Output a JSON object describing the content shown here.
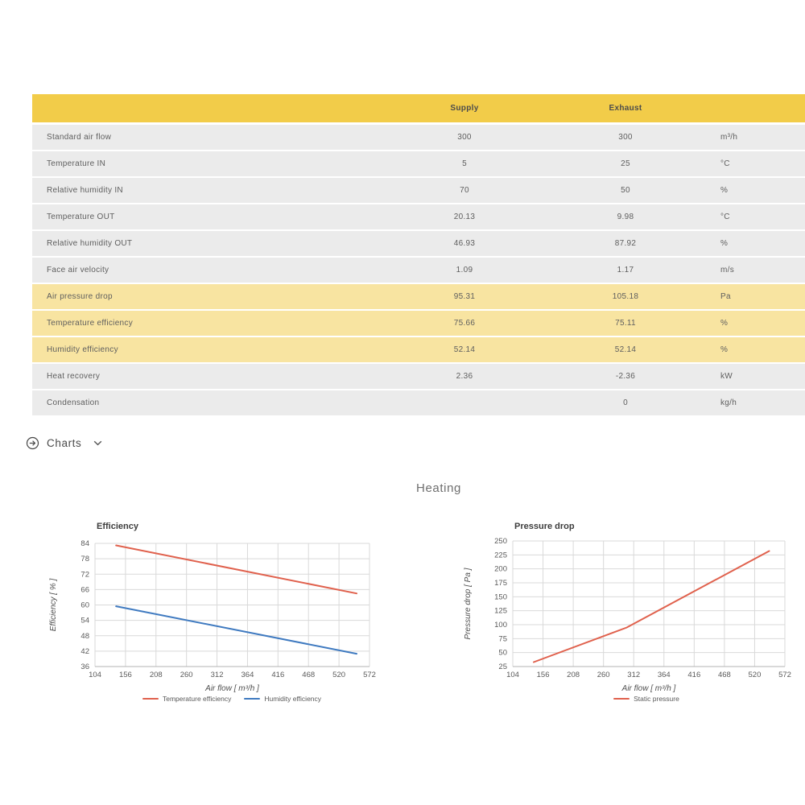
{
  "colors": {
    "header_gold": "#F2CC49",
    "row_gray": "#EBEBEB",
    "row_highlight": "#F8E4A1",
    "grid_line": "#D9D9D9",
    "axis_line": "#B3B3B3",
    "red_series": "#E0614D",
    "blue_series": "#3F7AC0",
    "text_gray": "#5E5E5E"
  },
  "table": {
    "columns": {
      "supply": "Supply",
      "exhaust": "Exhaust"
    },
    "rows": [
      {
        "name": "Standard air flow",
        "supply": "300",
        "exhaust": "300",
        "unit": "m³/h",
        "highlight": false
      },
      {
        "name": "Temperature IN",
        "supply": "5",
        "exhaust": "25",
        "unit": "°C",
        "highlight": false
      },
      {
        "name": "Relative humidity IN",
        "supply": "70",
        "exhaust": "50",
        "unit": "%",
        "highlight": false
      },
      {
        "name": "Temperature OUT",
        "supply": "20.13",
        "exhaust": "9.98",
        "unit": "°C",
        "highlight": false
      },
      {
        "name": "Relative humidity OUT",
        "supply": "46.93",
        "exhaust": "87.92",
        "unit": "%",
        "highlight": false
      },
      {
        "name": "Face air velocity",
        "supply": "1.09",
        "exhaust": "1.17",
        "unit": "m/s",
        "highlight": false
      },
      {
        "name": "Air pressure drop",
        "supply": "95.31",
        "exhaust": "105.18",
        "unit": "Pa",
        "highlight": true
      },
      {
        "name": "Temperature efficiency",
        "supply": "75.66",
        "exhaust": "75.11",
        "unit": "%",
        "highlight": true
      },
      {
        "name": "Humidity efficiency",
        "supply": "52.14",
        "exhaust": "52.14",
        "unit": "%",
        "highlight": true
      },
      {
        "name": "Heat recovery",
        "supply": "2.36",
        "exhaust": "-2.36",
        "unit": "kW",
        "highlight": false
      },
      {
        "name": "Condensation",
        "supply": "",
        "exhaust": "0",
        "unit": "kg/h",
        "highlight": false
      }
    ]
  },
  "charts_section": {
    "toggle_label": "Charts",
    "expand_icon": "arrow-right-circle",
    "collapse_icon": "chevron-down",
    "group_title": "Heating"
  },
  "chart_data": [
    {
      "type": "line",
      "title": "Efficiency",
      "xlabel": "Air flow [ m³/h ]",
      "ylabel": "Efficiency [ % ]",
      "xlim": [
        104,
        572
      ],
      "ylim": [
        36,
        84
      ],
      "x_ticks": [
        104,
        156,
        208,
        260,
        312,
        364,
        416,
        468,
        520,
        572
      ],
      "y_ticks": [
        36,
        42,
        48,
        54,
        60,
        66,
        72,
        78,
        84
      ],
      "grid": true,
      "legend_position": "bottom",
      "series": [
        {
          "name": "Temperature efficiency",
          "color": "#E0614D",
          "points": [
            [
              140,
              83.2
            ],
            [
              550,
              64.5
            ]
          ]
        },
        {
          "name": "Humidity efficiency",
          "color": "#3F7AC0",
          "points": [
            [
              140,
              59.5
            ],
            [
              550,
              41
            ]
          ]
        }
      ]
    },
    {
      "type": "line",
      "title": "Pressure drop",
      "xlabel": "Air flow [ m³/h ]",
      "ylabel": "Pressure drop [ Pa ]",
      "xlim": [
        104,
        572
      ],
      "ylim": [
        25,
        250
      ],
      "x_ticks": [
        104,
        156,
        208,
        260,
        312,
        364,
        416,
        468,
        520,
        572
      ],
      "y_ticks": [
        25,
        50,
        75,
        100,
        125,
        150,
        175,
        200,
        225,
        250
      ],
      "grid": true,
      "legend_position": "bottom",
      "series": [
        {
          "name": "Static pressure",
          "color": "#E0614D",
          "points": [
            [
              140,
              33
            ],
            [
              300,
              95
            ],
            [
              545,
              232
            ]
          ]
        }
      ]
    }
  ]
}
